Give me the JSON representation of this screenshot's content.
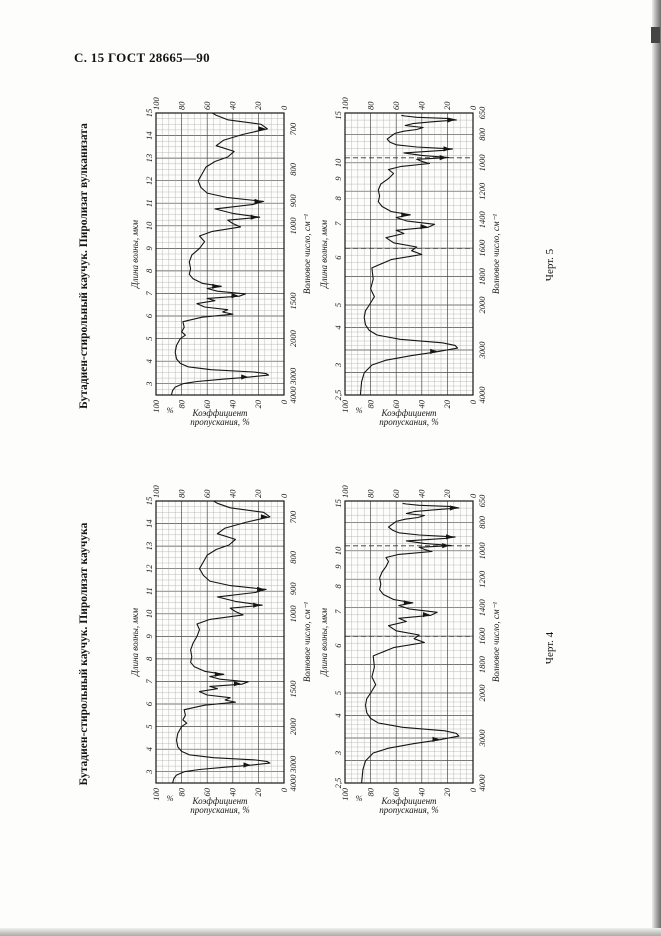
{
  "page": {
    "header": "С. 15 ГОСТ 28665—90"
  },
  "figures": [
    {
      "caption": "Черт. 5",
      "title": "Бутадиен-стирольный каучук. Пиролизат вулканизата"
    },
    {
      "caption": "Черт. 4",
      "title": "Бутадиен-стирольный каучук. Пиролизат каучука"
    }
  ],
  "chart_data": {
    "type": "line",
    "description": "ИК-спектры пропускания пиролизатов",
    "axis": {
      "wavelength": "Длина волны, мкм",
      "wavenumber": "Волновое число, см⁻¹",
      "transmission_line1": "Коэффициент",
      "transmission_line2": "пропускания, %",
      "percent": "%"
    },
    "xlim_um": [
      2.5,
      15
    ],
    "ylim": [
      0,
      100
    ],
    "transmission_ticks": [
      0,
      20,
      40,
      60,
      80,
      100
    ],
    "spectra": {
      "vulkanizat": {
        "name": "Пиролизат вулканизата",
        "arrows_um": [
          3.3,
          6.9,
          7.32,
          10.38,
          11.08,
          14.3
        ],
        "points": [
          [
            2.5,
            88
          ],
          [
            2.7,
            87
          ],
          [
            2.85,
            85
          ],
          [
            3.0,
            79
          ],
          [
            3.1,
            68
          ],
          [
            3.2,
            48
          ],
          [
            3.28,
            30
          ],
          [
            3.38,
            12
          ],
          [
            3.45,
            14
          ],
          [
            3.52,
            24
          ],
          [
            3.62,
            57
          ],
          [
            3.75,
            75
          ],
          [
            3.9,
            81
          ],
          [
            4.1,
            84
          ],
          [
            4.4,
            85
          ],
          [
            4.7,
            84
          ],
          [
            5.0,
            81
          ],
          [
            5.15,
            77
          ],
          [
            5.3,
            80
          ],
          [
            5.5,
            78
          ],
          [
            5.75,
            79
          ],
          [
            5.95,
            64
          ],
          [
            6.08,
            40
          ],
          [
            6.18,
            48
          ],
          [
            6.28,
            44
          ],
          [
            6.4,
            62
          ],
          [
            6.55,
            68
          ],
          [
            6.68,
            54
          ],
          [
            6.78,
            60
          ],
          [
            6.88,
            35
          ],
          [
            6.98,
            30
          ],
          [
            7.1,
            52
          ],
          [
            7.22,
            60
          ],
          [
            7.32,
            49
          ],
          [
            7.45,
            64
          ],
          [
            7.65,
            71
          ],
          [
            7.85,
            74
          ],
          [
            8.1,
            73
          ],
          [
            8.4,
            74
          ],
          [
            8.7,
            72
          ],
          [
            9.0,
            66
          ],
          [
            9.3,
            62
          ],
          [
            9.55,
            66
          ],
          [
            9.75,
            56
          ],
          [
            9.95,
            34
          ],
          [
            10.1,
            40
          ],
          [
            10.25,
            44
          ],
          [
            10.38,
            19
          ],
          [
            10.55,
            40
          ],
          [
            10.75,
            54
          ],
          [
            10.95,
            24
          ],
          [
            11.08,
            16
          ],
          [
            11.25,
            44
          ],
          [
            11.45,
            60
          ],
          [
            11.7,
            65
          ],
          [
            12.0,
            67
          ],
          [
            12.3,
            64
          ],
          [
            12.6,
            61
          ],
          [
            12.85,
            54
          ],
          [
            13.05,
            44
          ],
          [
            13.3,
            39
          ],
          [
            13.55,
            53
          ],
          [
            13.8,
            47
          ],
          [
            14.05,
            32
          ],
          [
            14.3,
            13
          ],
          [
            14.5,
            18
          ],
          [
            14.7,
            44
          ],
          [
            14.9,
            53
          ],
          [
            15.0,
            56
          ]
        ]
      },
      "kauchuk": {
        "name": "Пиролизат каучука",
        "arrows_um": [
          3.3,
          6.9,
          7.32,
          10.38,
          11.08,
          14.3
        ],
        "points": [
          [
            2.5,
            87
          ],
          [
            2.7,
            86
          ],
          [
            2.85,
            84
          ],
          [
            3.0,
            78
          ],
          [
            3.1,
            66
          ],
          [
            3.2,
            46
          ],
          [
            3.28,
            28
          ],
          [
            3.38,
            11
          ],
          [
            3.45,
            13
          ],
          [
            3.52,
            22
          ],
          [
            3.62,
            55
          ],
          [
            3.75,
            74
          ],
          [
            3.9,
            80
          ],
          [
            4.1,
            83
          ],
          [
            4.4,
            84
          ],
          [
            4.7,
            83
          ],
          [
            5.0,
            80
          ],
          [
            5.15,
            76
          ],
          [
            5.3,
            79
          ],
          [
            5.5,
            77
          ],
          [
            5.75,
            78
          ],
          [
            5.95,
            62
          ],
          [
            6.08,
            38
          ],
          [
            6.18,
            46
          ],
          [
            6.28,
            42
          ],
          [
            6.4,
            60
          ],
          [
            6.55,
            66
          ],
          [
            6.68,
            52
          ],
          [
            6.78,
            58
          ],
          [
            6.88,
            33
          ],
          [
            6.98,
            28
          ],
          [
            7.1,
            50
          ],
          [
            7.22,
            58
          ],
          [
            7.32,
            47
          ],
          [
            7.45,
            62
          ],
          [
            7.65,
            70
          ],
          [
            7.85,
            73
          ],
          [
            8.1,
            72
          ],
          [
            8.4,
            73
          ],
          [
            8.7,
            71
          ],
          [
            9.0,
            68
          ],
          [
            9.3,
            66
          ],
          [
            9.55,
            68
          ],
          [
            9.75,
            58
          ],
          [
            9.95,
            32
          ],
          [
            10.1,
            38
          ],
          [
            10.25,
            42
          ],
          [
            10.38,
            17
          ],
          [
            10.55,
            38
          ],
          [
            10.75,
            52
          ],
          [
            10.95,
            22
          ],
          [
            11.08,
            14
          ],
          [
            11.25,
            42
          ],
          [
            11.45,
            58
          ],
          [
            11.7,
            63
          ],
          [
            12.0,
            66
          ],
          [
            12.3,
            63
          ],
          [
            12.6,
            60
          ],
          [
            12.85,
            53
          ],
          [
            13.05,
            43
          ],
          [
            13.3,
            38
          ],
          [
            13.55,
            52
          ],
          [
            13.8,
            46
          ],
          [
            14.05,
            30
          ],
          [
            14.3,
            11
          ],
          [
            14.5,
            16
          ],
          [
            14.7,
            42
          ],
          [
            14.9,
            52
          ],
          [
            15.0,
            55
          ]
        ]
      }
    },
    "panels": [
      {
        "figure": "Черт. 5",
        "scale": "wavelength-linear",
        "spectrum": "vulkanizat",
        "wavelength_ticks": [
          3,
          4,
          5,
          6,
          7,
          8,
          9,
          10,
          11,
          12,
          13,
          14,
          15
        ],
        "wavenumber_ticks": [
          700,
          800,
          900,
          1000,
          1500,
          2000,
          3000,
          4000
        ]
      },
      {
        "figure": "Черт. 5",
        "scale": "wavenumber-segmented",
        "spectrum": "vulkanizat",
        "wavelength_ticks": [
          2.5,
          3,
          4,
          5,
          6,
          7,
          8,
          9,
          10,
          15
        ],
        "wavenumber_ticks": [
          4000,
          3000,
          2000,
          1800,
          1600,
          1400,
          1200,
          1000,
          800,
          650
        ],
        "reference_lines_nu": [
          1602,
          965
        ]
      },
      {
        "figure": "Черт. 4",
        "scale": "wavelength-linear",
        "spectrum": "kauchuk",
        "wavelength_ticks": [
          3,
          4,
          5,
          6,
          7,
          8,
          9,
          10,
          11,
          12,
          13,
          14,
          15
        ],
        "wavenumber_ticks": [
          700,
          800,
          900,
          1000,
          1500,
          2000,
          3000,
          4000
        ]
      },
      {
        "figure": "Черт. 4",
        "scale": "wavenumber-segmented",
        "spectrum": "kauchuk",
        "wavelength_ticks": [
          2.5,
          3,
          4,
          5,
          6,
          7,
          8,
          9,
          10,
          15
        ],
        "wavenumber_ticks": [
          4000,
          3000,
          2000,
          1800,
          1600,
          1400,
          1200,
          1000,
          800,
          650
        ],
        "reference_lines_nu": [
          1602,
          965
        ]
      }
    ]
  }
}
